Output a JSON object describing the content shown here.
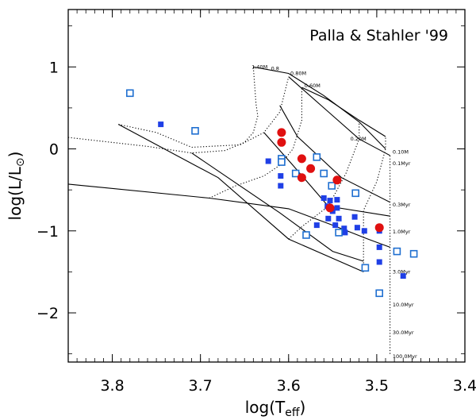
{
  "chart_data": {
    "type": "scatter",
    "title": "Palla & Stahler '99",
    "xlabel": "log(T",
    "xlabel_sub": "eff",
    "xlabel_close": ")",
    "ylabel": "log(L/L",
    "ylabel_sub": "⊙",
    "ylabel_close": ")",
    "xlim": [
      3.85,
      3.4
    ],
    "ylim": [
      -2.6,
      1.7
    ],
    "x_inverted": true,
    "x_ticks": [
      {
        "value": 3.8,
        "label": "3.8"
      },
      {
        "value": 3.7,
        "label": "3.7"
      },
      {
        "value": 3.6,
        "label": "3.6"
      },
      {
        "value": 3.5,
        "label": "3.5"
      },
      {
        "value": 3.4,
        "label": "3.4"
      }
    ],
    "y_ticks": [
      {
        "value": 1,
        "label": "1"
      },
      {
        "value": 0,
        "label": "0"
      },
      {
        "value": -1,
        "label": "−1"
      },
      {
        "value": -2,
        "label": "−2"
      }
    ],
    "grid": false,
    "tracks": [
      {
        "points": [
          [
            3.85,
            -0.43
          ],
          [
            3.69,
            -0.6
          ],
          [
            3.6,
            -0.73
          ],
          [
            3.55,
            -0.93
          ],
          [
            3.51,
            -1.1
          ],
          [
            3.485,
            -1.2
          ]
        ]
      },
      {
        "points": [
          [
            3.793,
            0.3
          ],
          [
            3.68,
            -0.35
          ],
          [
            3.6,
            -1.1
          ],
          [
            3.515,
            -1.5
          ]
        ]
      },
      {
        "points": [
          [
            3.71,
            -0.05
          ],
          [
            3.61,
            -0.78
          ],
          [
            3.55,
            -1.25
          ],
          [
            3.515,
            -1.37
          ]
        ]
      },
      {
        "points": [
          [
            3.628,
            0.2
          ],
          [
            3.595,
            -0.2
          ],
          [
            3.555,
            -0.7
          ],
          [
            3.485,
            -0.82
          ]
        ]
      },
      {
        "points": [
          [
            3.61,
            0.53
          ],
          [
            3.59,
            0.15
          ],
          [
            3.54,
            -0.35
          ],
          [
            3.485,
            -0.65
          ]
        ]
      },
      {
        "points": [
          [
            3.6,
            0.88
          ],
          [
            3.56,
            0.5
          ],
          [
            3.52,
            0.12
          ],
          [
            3.485,
            -0.08
          ]
        ]
      },
      {
        "points": [
          [
            3.585,
            0.75
          ],
          [
            3.555,
            0.6
          ],
          [
            3.52,
            0.35
          ],
          [
            3.49,
            0.15
          ]
        ]
      },
      {
        "points": [
          [
            3.64,
            1.0
          ],
          [
            3.6,
            0.92
          ],
          [
            3.56,
            0.65
          ],
          [
            3.52,
            0.33
          ],
          [
            3.49,
            0.0
          ]
        ]
      }
    ],
    "isochrones": [
      {
        "points": [
          [
            3.85,
            0.14
          ],
          [
            3.76,
            0.03
          ],
          [
            3.71,
            -0.05
          ],
          [
            3.672,
            -0.02
          ],
          [
            3.65,
            0.08
          ],
          [
            3.64,
            0.2
          ],
          [
            3.635,
            0.4
          ],
          [
            3.637,
            0.55
          ],
          [
            3.64,
            1.0
          ]
        ]
      },
      {
        "points": [
          [
            3.793,
            0.3
          ],
          [
            3.75,
            0.2
          ],
          [
            3.71,
            0.02
          ],
          [
            3.655,
            0.05
          ],
          [
            3.628,
            0.2
          ],
          [
            3.61,
            0.45
          ],
          [
            3.6,
            0.88
          ]
        ]
      },
      {
        "points": [
          [
            3.69,
            -0.6
          ],
          [
            3.66,
            -0.45
          ],
          [
            3.628,
            -0.33
          ],
          [
            3.61,
            -0.2
          ],
          [
            3.595,
            0.0
          ],
          [
            3.585,
            0.35
          ],
          [
            3.585,
            0.75
          ]
        ]
      },
      {
        "points": [
          [
            3.6,
            -1.1
          ],
          [
            3.585,
            -0.95
          ],
          [
            3.555,
            -0.7
          ],
          [
            3.535,
            -0.3
          ],
          [
            3.52,
            0.12
          ],
          [
            3.52,
            0.33
          ]
        ]
      },
      {
        "points": [
          [
            3.515,
            -1.5
          ],
          [
            3.515,
            -1.1
          ],
          [
            3.515,
            -0.75
          ],
          [
            3.5,
            -0.4
          ],
          [
            3.49,
            0.0
          ],
          [
            3.49,
            0.15
          ]
        ]
      },
      {
        "points": [
          [
            3.485,
            -2.5
          ],
          [
            3.485,
            -1.5
          ],
          [
            3.485,
            -1.2
          ],
          [
            3.485,
            -0.82
          ],
          [
            3.485,
            -0.65
          ],
          [
            3.485,
            -0.08
          ]
        ]
      }
    ],
    "curve_labels": [
      {
        "x": 3.642,
        "y": 0.98,
        "text": "1.40M"
      },
      {
        "x": 3.62,
        "y": 0.96,
        "text": "0.8"
      },
      {
        "x": 3.598,
        "y": 0.9,
        "text": "0.80M"
      },
      {
        "x": 3.582,
        "y": 0.75,
        "text": "0.60M"
      },
      {
        "x": 3.53,
        "y": 0.1,
        "text": "0.20M"
      },
      {
        "x": 3.482,
        "y": -0.06,
        "text": "0.10M"
      },
      {
        "x": 3.482,
        "y": -0.2,
        "text": "0.1Myr"
      },
      {
        "x": 3.482,
        "y": -0.7,
        "text": "0.3Myr"
      },
      {
        "x": 3.482,
        "y": -1.03,
        "text": "1.0Myr"
      },
      {
        "x": 3.482,
        "y": -1.52,
        "text": "3.0Myr"
      },
      {
        "x": 3.482,
        "y": -1.92,
        "text": "10.0Myr"
      },
      {
        "x": 3.482,
        "y": -2.26,
        "text": "30.0Myr"
      },
      {
        "x": 3.482,
        "y": -2.55,
        "text": "100.0Myr"
      }
    ],
    "series": [
      {
        "marker": "filled-square",
        "color": "#1f3fe6",
        "points": [
          [
            3.745,
            0.3
          ],
          [
            3.623,
            -0.15
          ],
          [
            3.609,
            -0.33
          ],
          [
            3.609,
            -0.45
          ],
          [
            3.568,
            -0.93
          ],
          [
            3.56,
            -0.6
          ],
          [
            3.556,
            -0.7
          ],
          [
            3.555,
            -0.85
          ],
          [
            3.553,
            -0.63
          ],
          [
            3.55,
            -0.76
          ],
          [
            3.547,
            -0.93
          ],
          [
            3.545,
            -0.62
          ],
          [
            3.545,
            -0.72
          ],
          [
            3.543,
            -0.85
          ],
          [
            3.537,
            -0.97
          ],
          [
            3.536,
            -1.02
          ],
          [
            3.525,
            -0.83
          ],
          [
            3.522,
            -0.96
          ],
          [
            3.514,
            -1.0
          ],
          [
            3.497,
            -1.0
          ],
          [
            3.497,
            -1.2
          ],
          [
            3.497,
            -1.38
          ],
          [
            3.47,
            -1.55
          ]
        ]
      },
      {
        "marker": "open-square",
        "color": "#1f6fd0",
        "points": [
          [
            3.78,
            0.68
          ],
          [
            3.706,
            0.22
          ],
          [
            3.608,
            -0.12
          ],
          [
            3.608,
            -0.16
          ],
          [
            3.592,
            -0.3
          ],
          [
            3.58,
            -1.05
          ],
          [
            3.568,
            -0.1
          ],
          [
            3.56,
            -0.3
          ],
          [
            3.551,
            -0.45
          ],
          [
            3.543,
            -1.02
          ],
          [
            3.524,
            -0.54
          ],
          [
            3.513,
            -1.45
          ],
          [
            3.497,
            -1.76
          ],
          [
            3.477,
            -1.25
          ],
          [
            3.458,
            -1.28
          ]
        ]
      },
      {
        "marker": "filled-circle",
        "color": "#e01010",
        "points": [
          [
            3.608,
            0.2
          ],
          [
            3.608,
            0.08
          ],
          [
            3.585,
            -0.12
          ],
          [
            3.585,
            -0.35
          ],
          [
            3.575,
            -0.24
          ],
          [
            3.553,
            -0.72
          ],
          [
            3.545,
            -0.38
          ],
          [
            3.497,
            -0.96
          ]
        ]
      }
    ]
  }
}
